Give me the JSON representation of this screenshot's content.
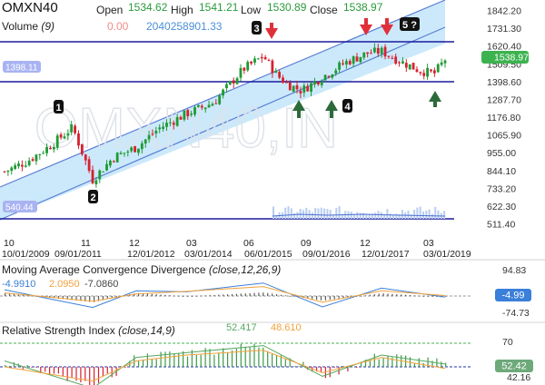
{
  "header": {
    "symbol": "OMXN40",
    "open_label": "Open",
    "open_value": "1534.62",
    "high_label": "High",
    "high_value": "1541.21",
    "low_label": "Low",
    "low_value": "1530.89",
    "close_label": "Close",
    "close_value": "1538.97",
    "volume_label": "Volume",
    "volume_param": "(9)",
    "volume_change": "0.00",
    "volume_value": "2040258901.33"
  },
  "watermark": "OMXN40,IN",
  "main_chart": {
    "price_axis": [
      "1842.20",
      "1731.30",
      "1620.40",
      "1509.50",
      "1398.60",
      "1287.70",
      "1176.80",
      "1065.90",
      "955.00",
      "844.10",
      "733.20",
      "622.30",
      "511.40"
    ],
    "last_price_label": "1538.97",
    "level_labels": {
      "upper_left": "1398.11",
      "lower_left": "540.44"
    },
    "date_axis": {
      "top": [
        "10",
        "11",
        "12",
        "03",
        "06",
        "09",
        "12",
        "03"
      ],
      "bottom": [
        "10/01/2009",
        "09/01/2011",
        "12/01/2012",
        "03/01/2014",
        "06/01/2015",
        "09/01/2016",
        "12/01/2017",
        "03/01/2019"
      ]
    },
    "wave_labels": [
      "1",
      "2",
      "3",
      "4",
      "5 ?"
    ],
    "colors": {
      "up": "#1e9a34",
      "down": "#d8202f",
      "channel_fill": "#cce9fb",
      "channel_line": "#4a6fd0",
      "horizontal_line": "#1c1c9c",
      "arrow_down": "#e0303a",
      "arrow_up": "#2d6a3a"
    },
    "chart_data": {
      "type": "candlestick",
      "ylim": [
        511.4,
        1842.2
      ],
      "x": [
        "2009-10",
        "2010-04",
        "2010-10",
        "2011-04",
        "2011-09",
        "2012-03",
        "2012-12",
        "2013-06",
        "2014-03",
        "2014-09",
        "2015-03",
        "2015-06",
        "2015-10",
        "2016-02",
        "2016-06",
        "2016-09",
        "2017-03",
        "2017-09",
        "2017-12",
        "2018-06",
        "2018-10",
        "2019-01",
        "2019-03"
      ],
      "close": [
        840,
        905,
        1000,
        1115,
        790,
        930,
        990,
        1110,
        1200,
        1270,
        1480,
        1560,
        1440,
        1380,
        1345,
        1430,
        1520,
        1580,
        1590,
        1530,
        1470,
        1450,
        1538.97
      ]
    }
  },
  "macd_panel": {
    "title": "Moving Average Convergence Divergence",
    "params": "(close,12,26,9)",
    "values": [
      "-4.9910",
      "2.0950",
      "-7.0860"
    ],
    "axis": [
      "94.83",
      "-74.73"
    ],
    "current_value": "-4.99",
    "chart_data": {
      "type": "line",
      "x": [
        "2009-10",
        "2011-09",
        "2012-12",
        "2014-03",
        "2015-06",
        "2016-09",
        "2017-12",
        "2019-03"
      ],
      "series": [
        {
          "values": [
            30,
            -55,
            25,
            20,
            62,
            -52,
            38,
            -4.99
          ]
        },
        {
          "values": [
            15,
            -25,
            10,
            22,
            45,
            -30,
            25,
            2.095
          ]
        },
        {
          "values": [
            15,
            -30,
            15,
            -2,
            17,
            -22,
            13,
            -7.086
          ]
        }
      ]
    }
  },
  "rsi_panel": {
    "title": "Relative Strength Index",
    "params": "(close,14,9)",
    "peak_values": [
      "52.417",
      "48.610"
    ],
    "axis": [
      "70",
      "42.16"
    ],
    "current_value": "52.42",
    "chart_data": {
      "type": "line",
      "x": [
        "2009-10",
        "2011-09",
        "2012-12",
        "2014-03",
        "2015-06",
        "2016-09",
        "2017-12",
        "2019-03"
      ],
      "series": [
        {
          "values": [
            55,
            32,
            58,
            62,
            68,
            42,
            60,
            52.42
          ]
        },
        {
          "values": [
            50,
            38,
            55,
            60,
            64,
            45,
            58,
            48.61
          ]
        }
      ]
    }
  }
}
